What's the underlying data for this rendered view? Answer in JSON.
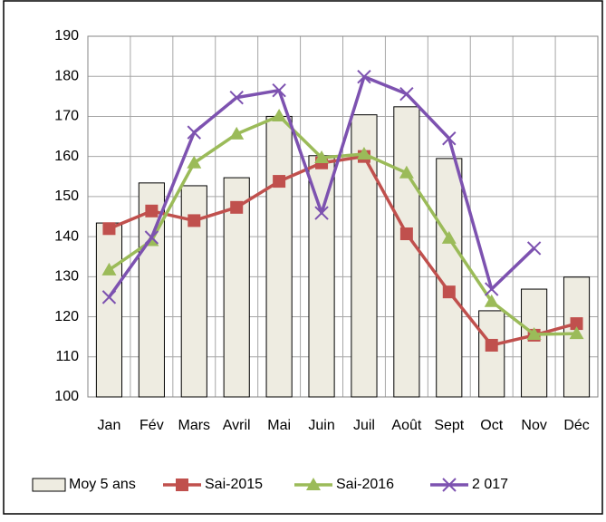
{
  "chart_data": {
    "type": "bar_line",
    "categories": [
      "Jan",
      "Fév",
      "Mars",
      "Avril",
      "Mai",
      "Juin",
      "Juil",
      "Août",
      "Sept",
      "Oct",
      "Nov",
      "Déc"
    ],
    "series": [
      {
        "name": "Moy 5 ans",
        "type": "bar",
        "color": "#eeece1",
        "values": [
          143.4,
          153.4,
          152.7,
          154.7,
          170,
          160.2,
          170.4,
          172.4,
          159.5,
          121.5,
          126.9,
          129.9
        ]
      },
      {
        "name": "Sai-2015",
        "type": "line",
        "marker": "square",
        "color": "#c0504d",
        "values": [
          142,
          146.4,
          144,
          147.3,
          153.8,
          158.4,
          160,
          140.7,
          126.2,
          112.9,
          115.4,
          118.3
        ]
      },
      {
        "name": "Sai-2016",
        "type": "line",
        "marker": "triangle",
        "color": "#9bbb59",
        "values": [
          131.7,
          139,
          158.4,
          165.6,
          170.1,
          159.7,
          160.6,
          155.9,
          139.6,
          123.8,
          115.6,
          115.8
        ]
      },
      {
        "name": "2 017",
        "type": "line",
        "marker": "x",
        "color": "#7d52b0",
        "values": [
          124.9,
          139.8,
          166,
          174.7,
          176.5,
          145.9,
          179.9,
          175.6,
          164.5,
          126.9,
          137.1,
          null
        ]
      }
    ],
    "ylim": [
      100,
      190
    ],
    "yticks": [
      100,
      110,
      120,
      130,
      140,
      150,
      160,
      170,
      180,
      190
    ],
    "grid": true,
    "legend": "bottom"
  }
}
